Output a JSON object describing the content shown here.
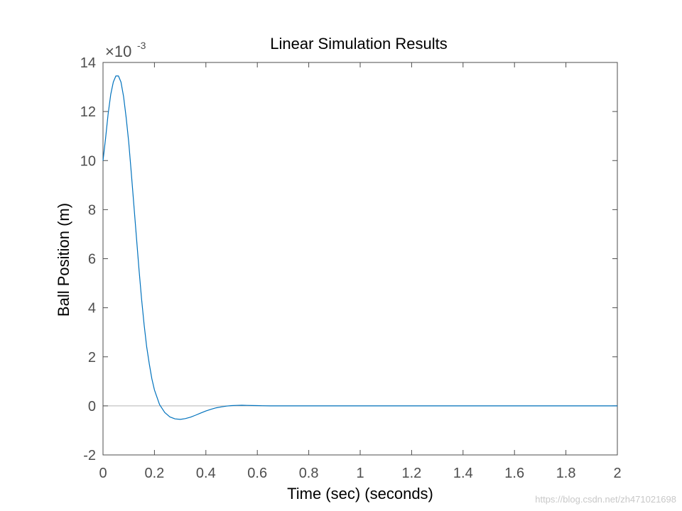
{
  "chart_data": {
    "type": "line",
    "title": "Linear Simulation Results",
    "xlabel": "Time (sec) (seconds)",
    "ylabel": "Ball Position (m)",
    "xlim": [
      0,
      2
    ],
    "ylim": [
      -2,
      14
    ],
    "y_exponent_label": {
      "base": "×10",
      "exponent": "-3"
    },
    "x_ticks": [
      "0",
      "0.2",
      "0.4",
      "0.6",
      "0.8",
      "1",
      "1.2",
      "1.4",
      "1.6",
      "1.8",
      "2"
    ],
    "y_ticks": [
      "-2",
      "0",
      "2",
      "4",
      "6",
      "8",
      "10",
      "12",
      "14"
    ],
    "zero_reference_line": 0,
    "grid": false,
    "series": [
      {
        "color": "#0072bd",
        "x": [
          0,
          0.01,
          0.02,
          0.03,
          0.04,
          0.05,
          0.06,
          0.07,
          0.08,
          0.09,
          0.1,
          0.11,
          0.12,
          0.13,
          0.14,
          0.15,
          0.16,
          0.17,
          0.18,
          0.19,
          0.2,
          0.22,
          0.24,
          0.26,
          0.28,
          0.3,
          0.32,
          0.34,
          0.36,
          0.38,
          0.4,
          0.42,
          0.44,
          0.46,
          0.48,
          0.5,
          0.52,
          0.54,
          0.56,
          0.58,
          0.6,
          0.62,
          0.65,
          0.7,
          0.75,
          0.8,
          0.85,
          0.9,
          1.0,
          1.2,
          1.4,
          1.6,
          1.8,
          2.0
        ],
        "y": [
          10.0,
          10.9,
          11.9,
          12.7,
          13.2,
          13.45,
          13.45,
          13.2,
          12.6,
          11.75,
          10.75,
          9.5,
          8.2,
          6.85,
          5.55,
          4.35,
          3.3,
          2.4,
          1.7,
          1.1,
          0.65,
          0.05,
          -0.27,
          -0.45,
          -0.53,
          -0.55,
          -0.52,
          -0.46,
          -0.38,
          -0.29,
          -0.21,
          -0.14,
          -0.08,
          -0.04,
          -0.01,
          0.01,
          0.02,
          0.025,
          0.02,
          0.015,
          0.01,
          0.005,
          0.0,
          0.0,
          0.0,
          0.0,
          0.0,
          0.0,
          0.0,
          0.0,
          0.0,
          0.0,
          0.0,
          0.0
        ]
      }
    ]
  },
  "colors": {
    "axis": "#4d4d4d",
    "zero_line": "#b4b4b4",
    "line": "#0072bd"
  },
  "watermark": "https://blog.csdn.net/zh471021698"
}
